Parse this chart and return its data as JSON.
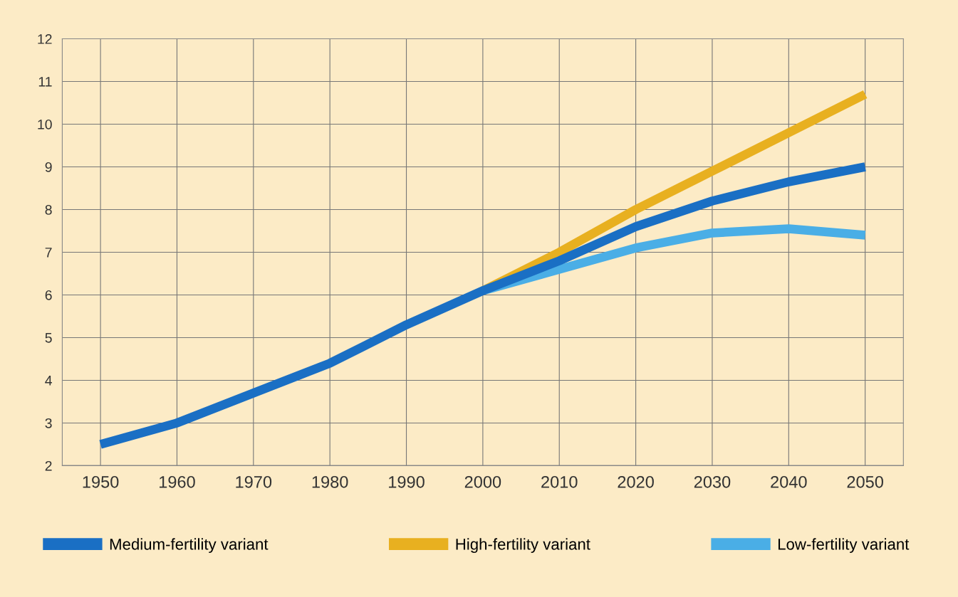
{
  "chart_data": {
    "type": "line",
    "x": [
      1950,
      1960,
      1970,
      1980,
      1990,
      2000,
      2010,
      2020,
      2030,
      2040,
      2050
    ],
    "series": [
      {
        "name": "Medium-fertility variant",
        "color": "#1a6fc4",
        "values": [
          2.5,
          3.0,
          3.7,
          4.4,
          5.3,
          6.1,
          6.8,
          7.6,
          8.2,
          8.65,
          9.0
        ]
      },
      {
        "name": "High-fertility variant",
        "color": "#e8b020",
        "values": [
          null,
          null,
          null,
          null,
          null,
          6.1,
          7.0,
          8.0,
          8.9,
          9.8,
          10.7
        ]
      },
      {
        "name": "Low-fertility variant",
        "color": "#4aaee6",
        "values": [
          null,
          null,
          null,
          null,
          null,
          6.1,
          6.6,
          7.1,
          7.45,
          7.55,
          7.4
        ]
      }
    ],
    "xlim": [
      1945,
      2055
    ],
    "xticks": [
      1950,
      1960,
      1970,
      1980,
      1990,
      2000,
      2010,
      2020,
      2030,
      2040,
      2050
    ],
    "ylim": [
      2,
      12
    ],
    "yticks": [
      2,
      3,
      4,
      5,
      6,
      7,
      8,
      9,
      10,
      11,
      12
    ],
    "grid": true,
    "legend": "bottom",
    "marker": "none",
    "line_style": "solid"
  }
}
